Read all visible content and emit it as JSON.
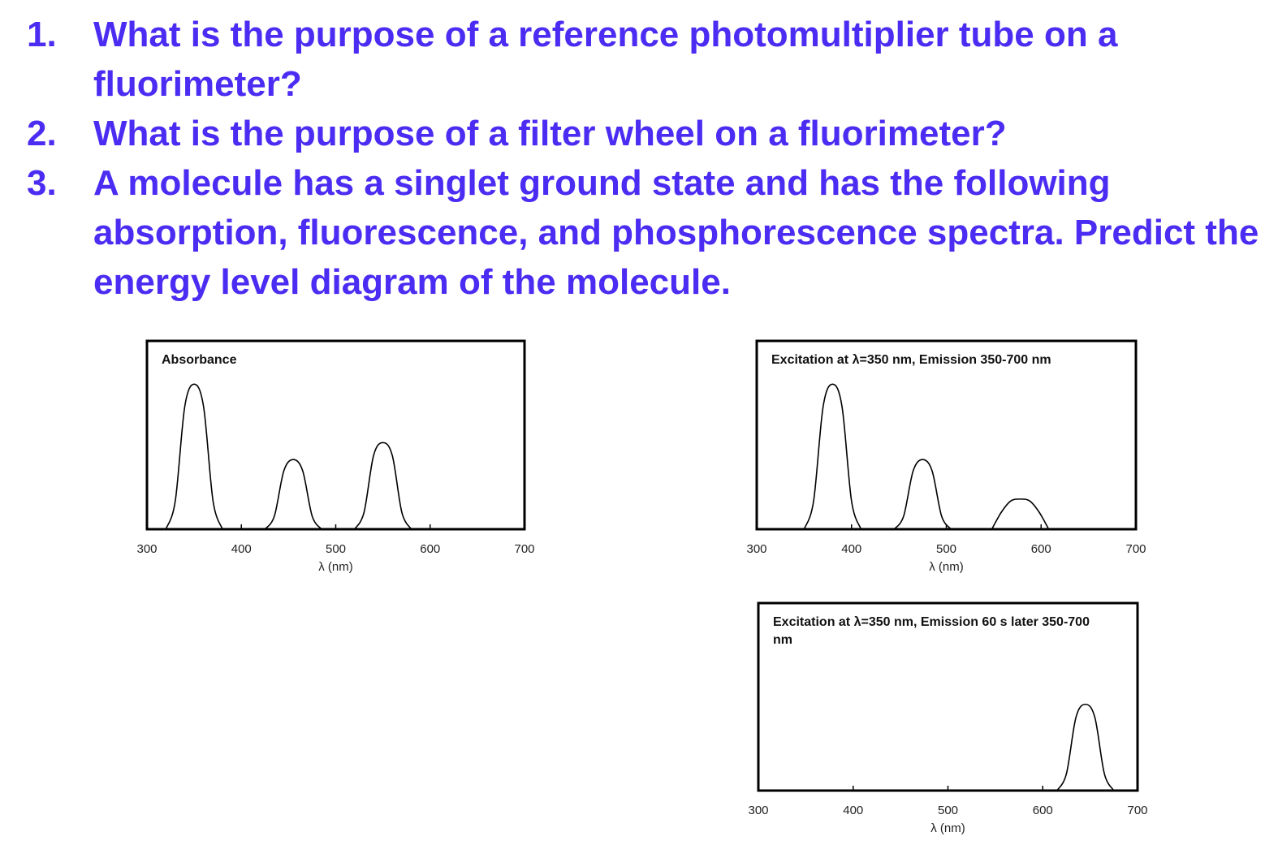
{
  "questions": [
    {
      "number": "1.",
      "text": "What is the purpose of a reference photomultiplier tube on a fluorimeter?"
    },
    {
      "number": "2.",
      "text": "What is the purpose of a filter wheel on a fluorimeter?"
    },
    {
      "number": "3.",
      "text": "A molecule has a singlet ground state and has the following absorption, fluorescence, and phosphorescence spectra.  Predict the energy level diagram of the molecule."
    }
  ],
  "chart_data": [
    {
      "type": "line",
      "title": "Absorbance",
      "xlabel": "λ (nm)",
      "xlim": [
        300,
        700
      ],
      "xticks": [
        300,
        400,
        500,
        600,
        700
      ],
      "ylim": [
        0,
        1
      ],
      "series": [
        {
          "color": "#000000",
          "x": [
            320,
            330,
            340,
            350,
            360,
            370,
            380,
            null,
            425,
            435,
            445,
            455,
            465,
            475,
            485,
            null,
            520,
            530,
            540,
            550,
            560,
            570,
            580
          ],
          "values": [
            0,
            0.15,
            0.65,
            0.77,
            0.65,
            0.15,
            0,
            null,
            0,
            0.07,
            0.31,
            0.37,
            0.31,
            0.07,
            0,
            null,
            0,
            0.09,
            0.39,
            0.46,
            0.39,
            0.09,
            0
          ]
        }
      ]
    },
    {
      "type": "line",
      "title": "Excitation at λ=350 nm, Emission 350-700 nm",
      "xlabel": "λ (nm)",
      "xlim": [
        300,
        700
      ],
      "xticks": [
        300,
        400,
        500,
        600,
        700
      ],
      "ylim": [
        0,
        1
      ],
      "series": [
        {
          "color": "#000000",
          "x": [
            350,
            360,
            370,
            380,
            390,
            400,
            410,
            null,
            445,
            455,
            465,
            475,
            485,
            495,
            505,
            null,
            548,
            558,
            568,
            578,
            588,
            598,
            608
          ],
          "values": [
            0,
            0.15,
            0.65,
            0.77,
            0.65,
            0.15,
            0,
            null,
            0,
            0.07,
            0.31,
            0.37,
            0.31,
            0.07,
            0,
            null,
            0,
            0.09,
            0.15,
            0.16,
            0.15,
            0.09,
            0
          ]
        }
      ]
    },
    {
      "type": "line",
      "title": "Excitation at λ=350 nm, Emission 60 s later 350-700 nm",
      "xlabel": "λ (nm)",
      "xlim": [
        300,
        700
      ],
      "xticks": [
        300,
        400,
        500,
        600,
        700
      ],
      "ylim": [
        0,
        1
      ],
      "series": [
        {
          "color": "#000000",
          "x": [
            615,
            625,
            635,
            645,
            655,
            665,
            675
          ],
          "values": [
            0,
            0.09,
            0.39,
            0.46,
            0.39,
            0.09,
            0
          ]
        }
      ]
    }
  ]
}
